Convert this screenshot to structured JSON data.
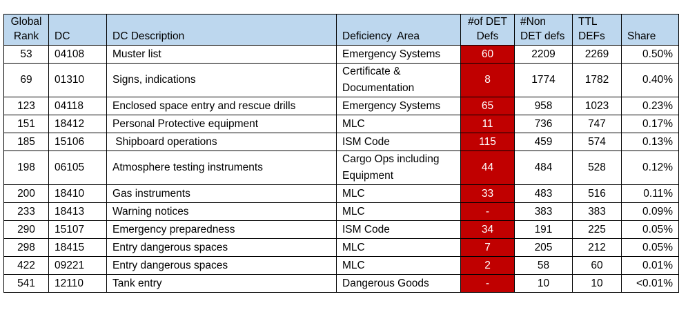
{
  "headers": {
    "rank": [
      "Global",
      "Rank"
    ],
    "dc": "DC",
    "desc": "DC Description",
    "area": "Deficiency  Area",
    "det": [
      "#of DET",
      "Defs"
    ],
    "nondet": [
      "#Non",
      "DET defs"
    ],
    "ttl": [
      "TTL",
      "DEFs"
    ],
    "share": "Share"
  },
  "colors": {
    "header_bg": "#BDD7EE",
    "det_bg": "#C00000"
  },
  "rows": [
    {
      "rank": "53",
      "dc": "04108",
      "desc": "Muster list",
      "area": "Emergency Systems",
      "det": "60",
      "nondet": "2209",
      "ttl": "2269",
      "share": "0.50%"
    },
    {
      "rank": "69",
      "dc": "01310",
      "desc": "Signs, indications",
      "area": "Certificate & Documentation",
      "det": "8",
      "nondet": "1774",
      "ttl": "1782",
      "share": "0.40%"
    },
    {
      "rank": "123",
      "dc": "04118",
      "desc": "Enclosed space entry and rescue drills",
      "area": "Emergency Systems",
      "det": "65",
      "nondet": "958",
      "ttl": "1023",
      "share": "0.23%"
    },
    {
      "rank": "151",
      "dc": "18412",
      "desc": "Personal Protective equipment",
      "area": "MLC",
      "det": "11",
      "nondet": "736",
      "ttl": "747",
      "share": "0.17%"
    },
    {
      "rank": "185",
      "dc": "15106",
      "desc": " Shipboard operations",
      "area": "ISM Code",
      "det": "115",
      "nondet": "459",
      "ttl": "574",
      "share": "0.13%"
    },
    {
      "rank": "198",
      "dc": "06105",
      "desc": "Atmosphere testing instruments",
      "area": "Cargo Ops including Equipment",
      "det": "44",
      "nondet": "484",
      "ttl": "528",
      "share": "0.12%"
    },
    {
      "rank": "200",
      "dc": "18410",
      "desc": "Gas instruments",
      "area": "MLC",
      "det": "33",
      "nondet": "483",
      "ttl": "516",
      "share": "0.11%"
    },
    {
      "rank": "233",
      "dc": "18413",
      "desc": "Warning notices",
      "area": "MLC",
      "det": "-",
      "nondet": "383",
      "ttl": "383",
      "share": "0.09%"
    },
    {
      "rank": "290",
      "dc": "15107",
      "desc": "Emergency preparedness",
      "area": "ISM Code",
      "det": "34",
      "nondet": "191",
      "ttl": "225",
      "share": "0.05%"
    },
    {
      "rank": "298",
      "dc": "18415",
      "desc": "Entry dangerous spaces",
      "area": "MLC",
      "det": "7",
      "nondet": "205",
      "ttl": "212",
      "share": "0.05%"
    },
    {
      "rank": "422",
      "dc": "09221",
      "desc": "Entry dangerous spaces",
      "area": "MLC",
      "det": "2",
      "nondet": "58",
      "ttl": "60",
      "share": "0.01%"
    },
    {
      "rank": "541",
      "dc": "12110",
      "desc": "Tank entry",
      "area": "Dangerous Goods",
      "det": "-",
      "nondet": "10",
      "ttl": "10",
      "share": "<0.01%"
    }
  ]
}
